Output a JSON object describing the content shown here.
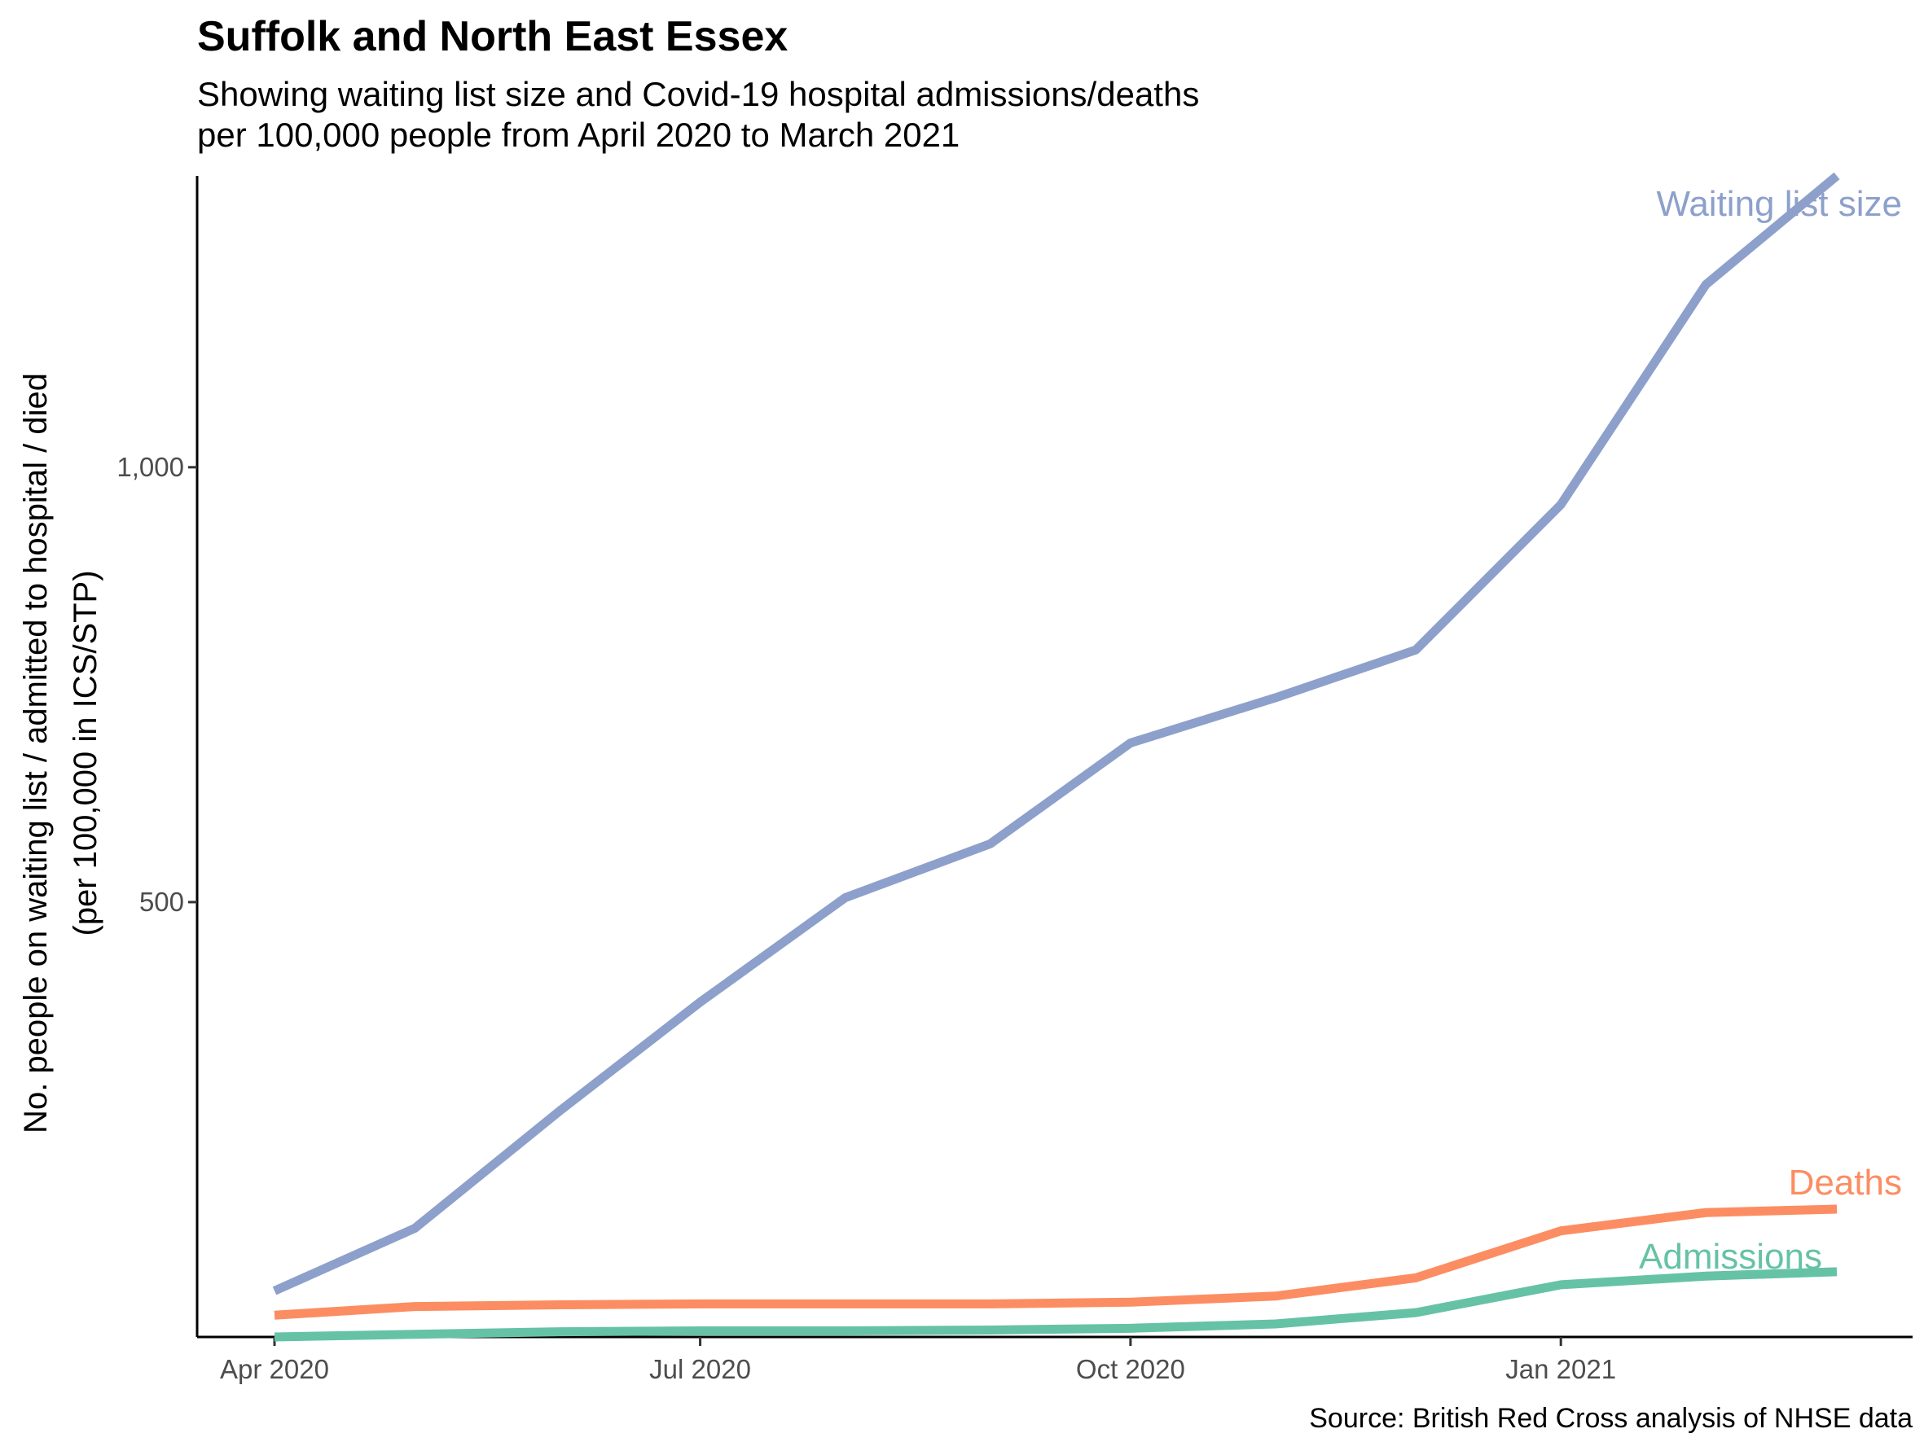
{
  "chart_data": {
    "type": "line",
    "title": "Suffolk and North East Essex",
    "subtitle": [
      "Showing waiting list size and Covid-19 hospital admissions/deaths",
      "per 100,000 people from April 2020 to March 2021"
    ],
    "ylabel": [
      "No. people on waiting list / admitted to hospital / died",
      "(per 100,000 in ICS/STP)"
    ],
    "xlabel": "",
    "caption": "Source: British Red Cross analysis of NHSE data",
    "x": [
      "2020-04-01",
      "2020-05-01",
      "2020-06-01",
      "2020-07-01",
      "2020-08-01",
      "2020-09-01",
      "2020-10-01",
      "2020-11-01",
      "2020-12-01",
      "2021-01-01",
      "2021-02-01",
      "2021-03-01"
    ],
    "xticks": [
      {
        "date": "2020-04-01",
        "label": "Apr 2020"
      },
      {
        "date": "2020-07-01",
        "label": "Jul 2020"
      },
      {
        "date": "2020-10-01",
        "label": "Oct 2020"
      },
      {
        "date": "2021-01-01",
        "label": "Jan 2021"
      }
    ],
    "yticks": [
      {
        "value": 500,
        "label": "500"
      },
      {
        "value": 1000,
        "label": "1,000"
      }
    ],
    "ylim": [
      0,
      1335
    ],
    "grid": false,
    "legend": "direct labels at line ends",
    "series": [
      {
        "name": "Waiting list size",
        "color": "#8DA0CB",
        "values": [
          53,
          125,
          260,
          385,
          505,
          567,
          683,
          735,
          790,
          957,
          1210,
          1335
        ]
      },
      {
        "name": "Deaths",
        "color": "#FC8D62",
        "values": [
          25,
          35,
          37,
          38,
          38,
          38,
          40,
          47,
          68,
          122,
          143,
          147
        ]
      },
      {
        "name": "Admissions",
        "color": "#66C2A5",
        "values": [
          0,
          3,
          6,
          7,
          7,
          8,
          10,
          15,
          28,
          60,
          70,
          75
        ]
      }
    ]
  }
}
